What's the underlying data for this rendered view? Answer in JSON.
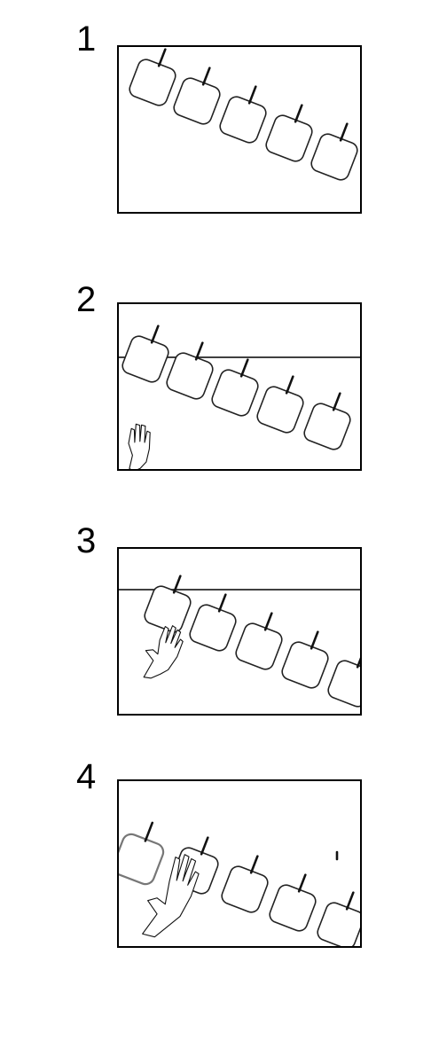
{
  "steps": [
    {
      "label": "1",
      "squares": 5,
      "hand": false,
      "divider": false
    },
    {
      "label": "2",
      "squares": 5,
      "hand": true,
      "divider": true
    },
    {
      "label": "3",
      "squares": 5,
      "hand": true,
      "divider": true
    },
    {
      "label": "4",
      "squares": 5,
      "hand": true,
      "divider": false
    }
  ],
  "colors": {
    "line": "#000000",
    "background": "#ffffff",
    "faded": "#777777"
  }
}
